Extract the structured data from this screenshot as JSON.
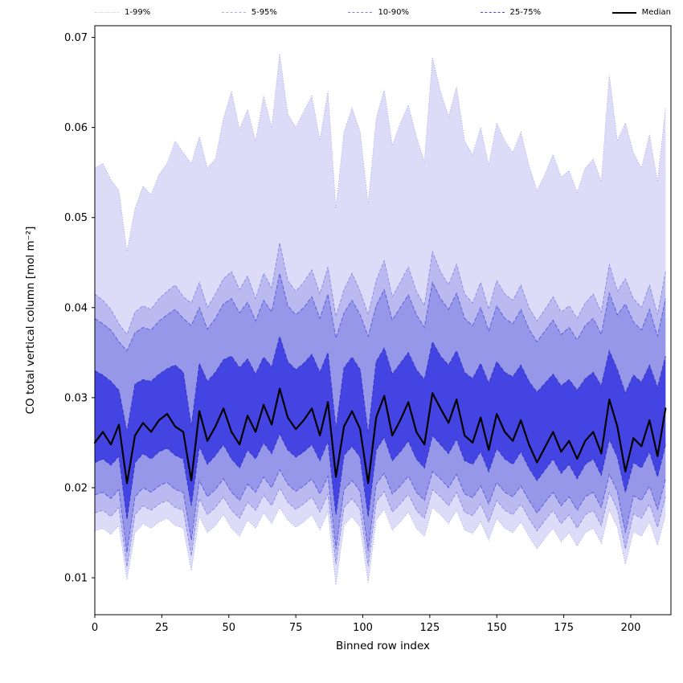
{
  "chart_data": {
    "type": "area",
    "title": "",
    "xlabel": "Binned row index",
    "ylabel": "CO total vertical column [mol m⁻²]",
    "xlim": [
      0,
      215
    ],
    "ylim": [
      0.0059,
      0.0713
    ],
    "xticks": [
      0,
      25,
      50,
      75,
      100,
      125,
      150,
      175,
      200
    ],
    "yticks": [
      0.01,
      0.02,
      0.03,
      0.04,
      0.05,
      0.06,
      0.07
    ],
    "grid": false,
    "legend_position": "top",
    "legend": [
      {
        "label": "1-99%",
        "color": "#c9c9f2",
        "dash": "1,2",
        "width": 1
      },
      {
        "label": "5-95%",
        "color": "#a9a9ec",
        "dash": "4,2",
        "width": 1
      },
      {
        "label": "10-90%",
        "color": "#7d7de4",
        "dash": "5,2",
        "width": 1.2
      },
      {
        "label": "25-75%",
        "color": "#4646d8",
        "dash": "5,2",
        "width": 1.4
      },
      {
        "label": "Median",
        "color": "#000000",
        "dash": "",
        "width": 2.5
      }
    ],
    "x": [
      0,
      3,
      6,
      9,
      12,
      15,
      18,
      21,
      24,
      27,
      30,
      33,
      36,
      39,
      42,
      45,
      48,
      51,
      54,
      57,
      60,
      63,
      66,
      69,
      72,
      75,
      78,
      81,
      84,
      87,
      90,
      93,
      96,
      99,
      102,
      105,
      108,
      111,
      114,
      117,
      120,
      123,
      126,
      129,
      132,
      135,
      138,
      141,
      144,
      147,
      150,
      153,
      156,
      159,
      162,
      165,
      168,
      171,
      174,
      177,
      180,
      183,
      186,
      189,
      192,
      195,
      198,
      201,
      204,
      207,
      210,
      213
    ],
    "percentiles": {
      "p1": [
        0.0152,
        0.0155,
        0.0148,
        0.0158,
        0.0098,
        0.015,
        0.016,
        0.0155,
        0.0162,
        0.0166,
        0.0158,
        0.0155,
        0.0108,
        0.0168,
        0.015,
        0.0158,
        0.017,
        0.0155,
        0.0146,
        0.0164,
        0.0155,
        0.0172,
        0.016,
        0.0178,
        0.0164,
        0.0156,
        0.0162,
        0.017,
        0.0153,
        0.0173,
        0.0092,
        0.0158,
        0.0168,
        0.0156,
        0.0095,
        0.0164,
        0.0176,
        0.0153,
        0.0162,
        0.0173,
        0.0155,
        0.0146,
        0.0178,
        0.017,
        0.016,
        0.0175,
        0.0153,
        0.0149,
        0.0162,
        0.0142,
        0.0166,
        0.0155,
        0.015,
        0.0162,
        0.0146,
        0.0132,
        0.0144,
        0.0155,
        0.014,
        0.015,
        0.0135,
        0.015,
        0.0155,
        0.0138,
        0.0175,
        0.0156,
        0.0115,
        0.0151,
        0.0146,
        0.0162,
        0.0136,
        0.017
      ],
      "p5": [
        0.0172,
        0.0175,
        0.0168,
        0.0178,
        0.0112,
        0.017,
        0.018,
        0.0175,
        0.0182,
        0.0186,
        0.0178,
        0.0175,
        0.0124,
        0.0188,
        0.017,
        0.0178,
        0.019,
        0.0175,
        0.0166,
        0.0184,
        0.0175,
        0.0192,
        0.018,
        0.02,
        0.0184,
        0.0176,
        0.0182,
        0.019,
        0.0173,
        0.0193,
        0.0115,
        0.0178,
        0.0188,
        0.0176,
        0.0113,
        0.0184,
        0.0196,
        0.0173,
        0.0182,
        0.0193,
        0.0175,
        0.0166,
        0.0198,
        0.019,
        0.018,
        0.0195,
        0.0173,
        0.0169,
        0.0182,
        0.0162,
        0.0186,
        0.0175,
        0.017,
        0.0182,
        0.0166,
        0.0152,
        0.0164,
        0.0175,
        0.016,
        0.017,
        0.0155,
        0.017,
        0.0175,
        0.0158,
        0.0195,
        0.0176,
        0.0132,
        0.0171,
        0.0166,
        0.0182,
        0.0156,
        0.019
      ],
      "p10": [
        0.0192,
        0.0195,
        0.0188,
        0.0198,
        0.0128,
        0.019,
        0.02,
        0.0195,
        0.0202,
        0.0206,
        0.0198,
        0.0195,
        0.0142,
        0.0208,
        0.019,
        0.0198,
        0.021,
        0.0195,
        0.0186,
        0.0204,
        0.0195,
        0.0212,
        0.02,
        0.022,
        0.0204,
        0.0196,
        0.0202,
        0.021,
        0.0193,
        0.0213,
        0.0132,
        0.0198,
        0.0208,
        0.0196,
        0.013,
        0.0204,
        0.0216,
        0.0193,
        0.0202,
        0.0213,
        0.0195,
        0.0186,
        0.0218,
        0.021,
        0.02,
        0.0215,
        0.0193,
        0.0189,
        0.0202,
        0.0182,
        0.0206,
        0.0195,
        0.019,
        0.0202,
        0.0186,
        0.0172,
        0.0184,
        0.0195,
        0.018,
        0.019,
        0.0175,
        0.019,
        0.0195,
        0.0178,
        0.0215,
        0.0196,
        0.015,
        0.0191,
        0.0186,
        0.0202,
        0.0176,
        0.021
      ],
      "p25": [
        0.0228,
        0.0232,
        0.0225,
        0.0235,
        0.0165,
        0.0228,
        0.0238,
        0.0232,
        0.024,
        0.0244,
        0.0236,
        0.0232,
        0.018,
        0.0246,
        0.0226,
        0.0236,
        0.0248,
        0.0232,
        0.0222,
        0.0242,
        0.0232,
        0.025,
        0.0238,
        0.026,
        0.0242,
        0.0234,
        0.024,
        0.0248,
        0.023,
        0.0252,
        0.017,
        0.0236,
        0.0246,
        0.0234,
        0.0168,
        0.0242,
        0.0256,
        0.023,
        0.024,
        0.0252,
        0.0232,
        0.0222,
        0.0258,
        0.0248,
        0.0238,
        0.0254,
        0.023,
        0.0226,
        0.024,
        0.0218,
        0.0244,
        0.0232,
        0.0226,
        0.024,
        0.0222,
        0.0208,
        0.022,
        0.0232,
        0.0216,
        0.0226,
        0.021,
        0.0226,
        0.0232,
        0.0214,
        0.0254,
        0.0234,
        0.0195,
        0.0228,
        0.0222,
        0.024,
        0.0212,
        0.0248
      ],
      "median": [
        0.025,
        0.0262,
        0.0248,
        0.027,
        0.0205,
        0.0258,
        0.0272,
        0.0262,
        0.0275,
        0.0282,
        0.0268,
        0.0262,
        0.0208,
        0.0285,
        0.0252,
        0.0268,
        0.0288,
        0.0262,
        0.0248,
        0.028,
        0.0262,
        0.0292,
        0.027,
        0.031,
        0.0278,
        0.0265,
        0.0275,
        0.0288,
        0.0258,
        0.0295,
        0.0212,
        0.0268,
        0.0285,
        0.0265,
        0.0205,
        0.0278,
        0.0302,
        0.0258,
        0.0275,
        0.0295,
        0.0262,
        0.0248,
        0.0305,
        0.0288,
        0.0272,
        0.0298,
        0.0258,
        0.025,
        0.0278,
        0.0242,
        0.0282,
        0.0262,
        0.0252,
        0.0275,
        0.0248,
        0.0228,
        0.0245,
        0.0262,
        0.024,
        0.0252,
        0.0232,
        0.0252,
        0.0262,
        0.0238,
        0.0298,
        0.0268,
        0.0218,
        0.0255,
        0.0246,
        0.0275,
        0.0235,
        0.0288
      ],
      "p75": [
        0.033,
        0.0325,
        0.0318,
        0.0308,
        0.0262,
        0.0315,
        0.032,
        0.0318,
        0.0326,
        0.0332,
        0.0336,
        0.0328,
        0.0268,
        0.0338,
        0.0318,
        0.0328,
        0.0342,
        0.0346,
        0.0333,
        0.0343,
        0.0326,
        0.0345,
        0.0334,
        0.0368,
        0.034,
        0.0331,
        0.0338,
        0.0348,
        0.0328,
        0.035,
        0.0265,
        0.0333,
        0.0345,
        0.0331,
        0.026,
        0.034,
        0.0355,
        0.0326,
        0.0338,
        0.035,
        0.0331,
        0.032,
        0.0362,
        0.0346,
        0.0336,
        0.0352,
        0.0328,
        0.0321,
        0.0338,
        0.0316,
        0.034,
        0.0328,
        0.0323,
        0.0336,
        0.0318,
        0.0306,
        0.0316,
        0.0326,
        0.0313,
        0.032,
        0.0308,
        0.0321,
        0.0328,
        0.0313,
        0.0352,
        0.0331,
        0.0305,
        0.0325,
        0.0317,
        0.0336,
        0.0311,
        0.0346
      ],
      "p90": [
        0.0388,
        0.0382,
        0.0375,
        0.0362,
        0.0352,
        0.0372,
        0.0378,
        0.0375,
        0.0385,
        0.0392,
        0.0398,
        0.0388,
        0.038,
        0.04,
        0.0376,
        0.0388,
        0.0404,
        0.041,
        0.0394,
        0.0406,
        0.0385,
        0.0408,
        0.0395,
        0.0438,
        0.0402,
        0.0392,
        0.04,
        0.0412,
        0.0388,
        0.0415,
        0.0366,
        0.0394,
        0.0408,
        0.0392,
        0.0368,
        0.0402,
        0.042,
        0.0386,
        0.04,
        0.0414,
        0.0392,
        0.0378,
        0.0428,
        0.041,
        0.0398,
        0.0416,
        0.0388,
        0.038,
        0.04,
        0.0374,
        0.0402,
        0.0388,
        0.0382,
        0.0398,
        0.0376,
        0.0362,
        0.0374,
        0.0386,
        0.037,
        0.0378,
        0.0364,
        0.038,
        0.0388,
        0.037,
        0.0416,
        0.0392,
        0.0404,
        0.0384,
        0.0375,
        0.0398,
        0.0368,
        0.041
      ],
      "p95": [
        0.0415,
        0.0408,
        0.0398,
        0.0382,
        0.037,
        0.0395,
        0.0402,
        0.0398,
        0.041,
        0.0418,
        0.0425,
        0.0412,
        0.0405,
        0.0428,
        0.04,
        0.0415,
        0.0432,
        0.044,
        0.042,
        0.0435,
        0.041,
        0.0438,
        0.0422,
        0.0472,
        0.043,
        0.0418,
        0.0428,
        0.0442,
        0.0415,
        0.0445,
        0.039,
        0.042,
        0.0438,
        0.0418,
        0.0392,
        0.043,
        0.0452,
        0.0412,
        0.0428,
        0.0445,
        0.0418,
        0.0402,
        0.0462,
        0.044,
        0.0425,
        0.0448,
        0.0415,
        0.0405,
        0.0428,
        0.0398,
        0.043,
        0.0415,
        0.0408,
        0.0425,
        0.04,
        0.0385,
        0.0398,
        0.0412,
        0.0395,
        0.0402,
        0.0388,
        0.0405,
        0.0415,
        0.0395,
        0.0448,
        0.0418,
        0.0432,
        0.041,
        0.04,
        0.0425,
        0.0392,
        0.044
      ],
      "p99": [
        0.0555,
        0.056,
        0.0542,
        0.053,
        0.0462,
        0.051,
        0.0535,
        0.0525,
        0.0548,
        0.056,
        0.0585,
        0.0572,
        0.056,
        0.059,
        0.0555,
        0.0565,
        0.061,
        0.064,
        0.0598,
        0.062,
        0.0585,
        0.0635,
        0.06,
        0.0682,
        0.0615,
        0.06,
        0.0618,
        0.0635,
        0.0586,
        0.064,
        0.051,
        0.0595,
        0.0622,
        0.0595,
        0.0515,
        0.061,
        0.0642,
        0.058,
        0.0605,
        0.0625,
        0.059,
        0.0562,
        0.0678,
        0.064,
        0.0612,
        0.0645,
        0.0585,
        0.057,
        0.06,
        0.0558,
        0.0605,
        0.0585,
        0.0572,
        0.0595,
        0.0558,
        0.053,
        0.0548,
        0.057,
        0.0545,
        0.0552,
        0.0528,
        0.0555,
        0.0565,
        0.054,
        0.0658,
        0.0585,
        0.0605,
        0.0572,
        0.0555,
        0.0592,
        0.054,
        0.0622
      ]
    },
    "bands": [
      {
        "lower": "p1",
        "upper": "p99",
        "fill": "#4646dc",
        "opacity": 0.19,
        "edge": "#9a9aec",
        "dash": "1,2",
        "edge_width": 0.8
      },
      {
        "lower": "p5",
        "upper": "p95",
        "fill": "#4646dc",
        "opacity": 0.22,
        "edge": "#8080e6",
        "dash": "4,2",
        "edge_width": 0.8
      },
      {
        "lower": "p10",
        "upper": "p90",
        "fill": "#4646dc",
        "opacity": 0.3,
        "edge": "#6060de",
        "dash": "5,2",
        "edge_width": 1.0
      },
      {
        "lower": "p25",
        "upper": "p75",
        "fill": "#2d2de0",
        "opacity": 0.78,
        "edge": "#3a3ac8",
        "dash": "5,2",
        "edge_width": 1.1
      }
    ],
    "median_style": {
      "color": "#000000",
      "width": 2.2
    }
  }
}
